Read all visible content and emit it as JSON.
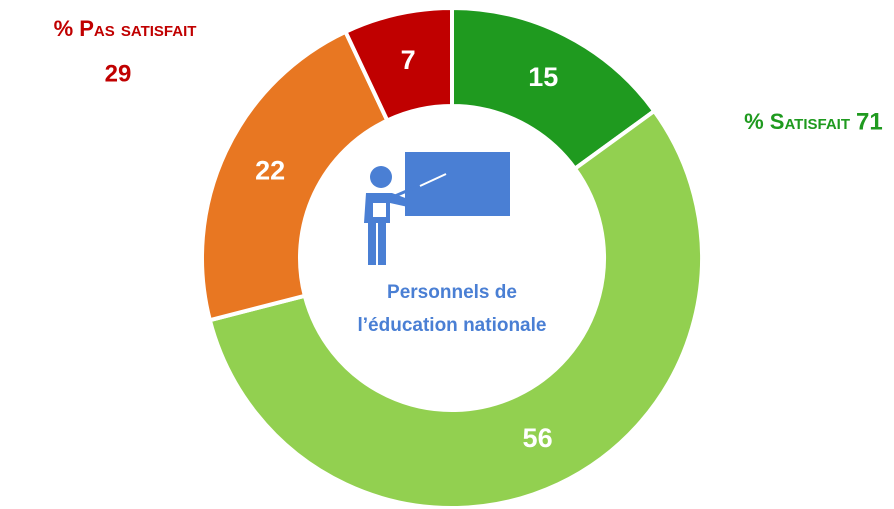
{
  "chart_data": {
    "type": "donut",
    "categories": [
      null,
      null,
      null,
      null
    ],
    "values": [
      15,
      56,
      22,
      7
    ],
    "colors": [
      "#1f9a1f",
      "#92d050",
      "#e87722",
      "#c00000"
    ],
    "center_text": [
      "Personnels de",
      "l’éducation nationale"
    ],
    "annotations": [
      {
        "text": "% Pas satisfait",
        "value": 29,
        "color": "#c00000"
      },
      {
        "text": "% Satisfait",
        "value": 71,
        "color": "#1f9a1f"
      }
    ]
  }
}
